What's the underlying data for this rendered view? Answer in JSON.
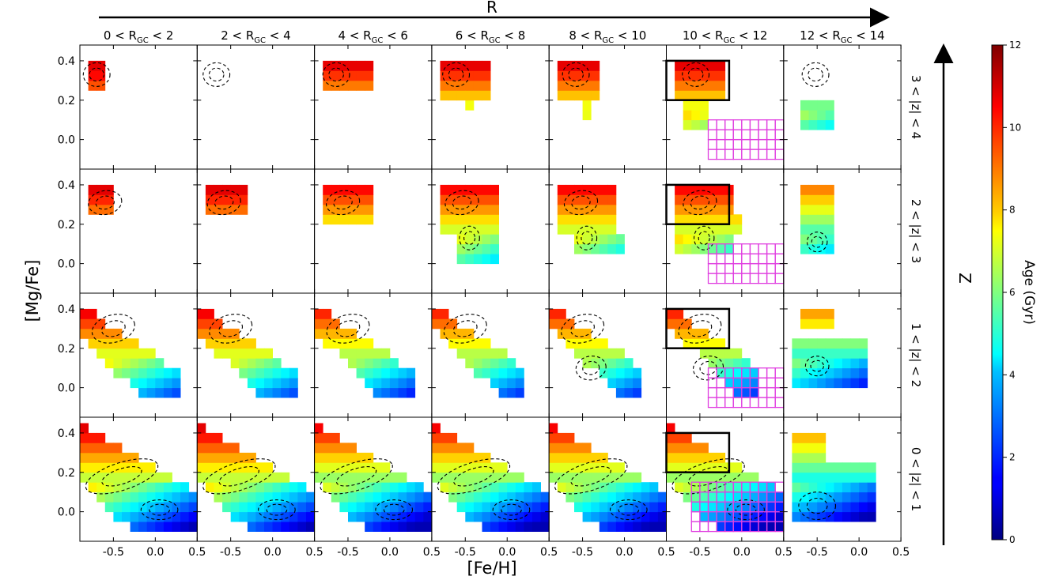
{
  "figure": {
    "top_arrow_label": "R",
    "right_arrow_label": "Z",
    "xlabel": "[Fe/H]",
    "ylabel": "[Mg/Fe]",
    "colorbar": {
      "label": "Age (Gyr)",
      "ticks": [
        "0",
        "2",
        "4",
        "6",
        "8",
        "10",
        "12"
      ],
      "range": [
        0,
        12
      ],
      "colormap": "jet"
    }
  },
  "chart_data": {
    "type": "heatmap",
    "title": "",
    "xlabel": "[Fe/H]",
    "ylabel": "[Mg/Fe]",
    "colorbar_label": "Age (Gyr)",
    "xlim": [
      -0.9,
      0.5
    ],
    "ylim": [
      -0.15,
      0.48
    ],
    "xticks": [
      -0.5,
      0.0,
      0.5
    ],
    "yticks": [
      0.0,
      0.2,
      0.4
    ],
    "columns": [
      {
        "rgc": [
          0,
          2
        ]
      },
      {
        "rgc": [
          2,
          4
        ]
      },
      {
        "rgc": [
          4,
          6
        ]
      },
      {
        "rgc": [
          6,
          8
        ]
      },
      {
        "rgc": [
          8,
          10
        ]
      },
      {
        "rgc": [
          10,
          12
        ]
      },
      {
        "rgc": [
          12,
          14
        ]
      }
    ],
    "rows": [
      {
        "z": [
          3,
          4
        ]
      },
      {
        "z": [
          2,
          3
        ]
      },
      {
        "z": [
          1,
          2
        ]
      },
      {
        "z": [
          0,
          1
        ]
      }
    ],
    "bin_size": {
      "feh": 0.1,
      "mgfe": 0.05
    }
  }
}
